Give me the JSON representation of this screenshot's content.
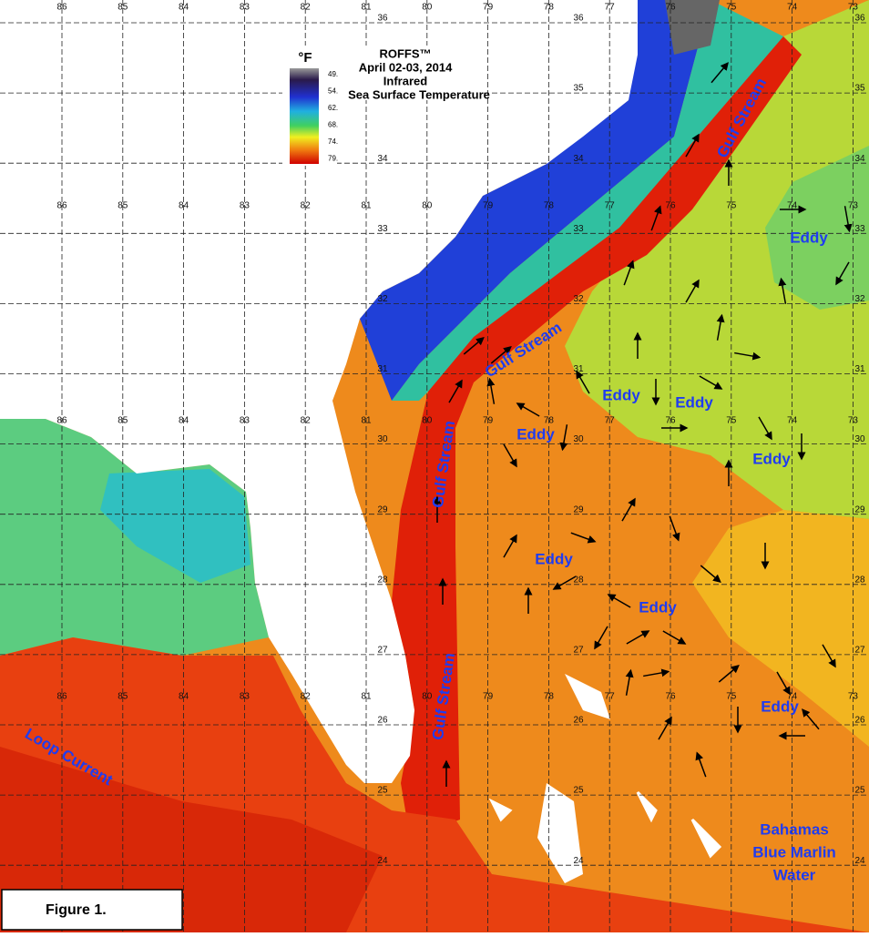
{
  "title": {
    "lines": [
      "ROFFS™",
      "April 02-03, 2014",
      "Infrared",
      "Sea Surface Temperature"
    ]
  },
  "legend": {
    "unit": "°F",
    "labels": [
      "49.",
      "54.",
      "62.",
      "68.",
      "74.",
      "79."
    ]
  },
  "grid": {
    "longitudes": [
      "86",
      "85",
      "84",
      "83",
      "82",
      "81",
      "80",
      "79",
      "78",
      "77",
      "76",
      "75",
      "74",
      "73"
    ],
    "latitudes": [
      "36",
      "35",
      "34",
      "33",
      "32",
      "31",
      "30",
      "29",
      "28",
      "27",
      "26",
      "25",
      "24"
    ]
  },
  "annotations": [
    "Gulf Stream",
    "Gulf Stream",
    "Gulf Stream",
    "Gulf Stream",
    "Eddy",
    "Eddy",
    "Eddy",
    "Eddy",
    "Eddy",
    "Eddy",
    "Eddy",
    "Eddy",
    "Loop Current",
    "Bahamas",
    "Blue Marlin",
    "Water"
  ],
  "figure_label": "Figure 1."
}
